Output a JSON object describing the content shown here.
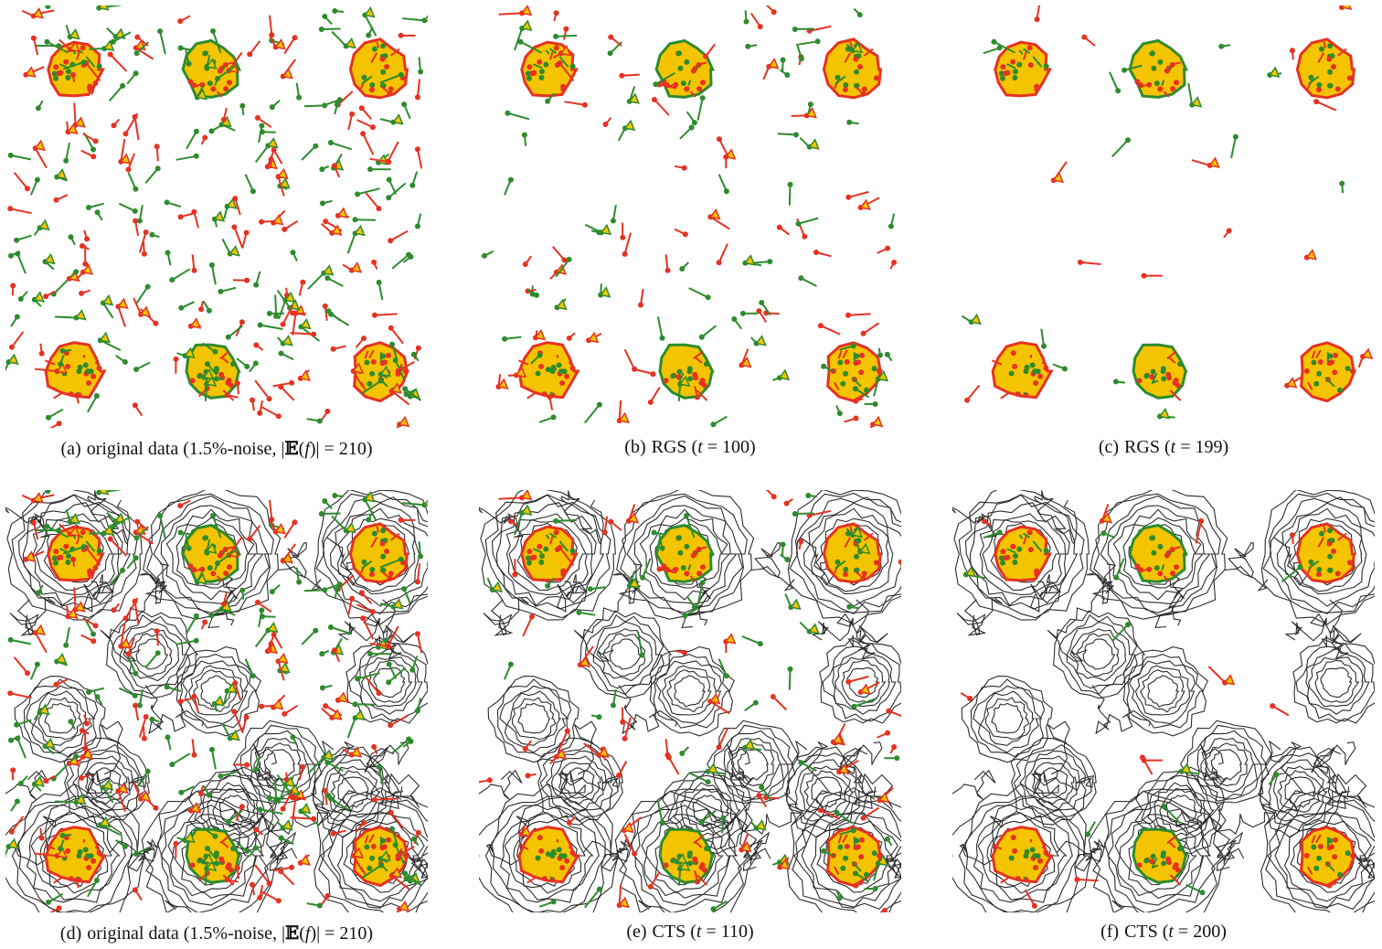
{
  "colors": {
    "min": "#e53222",
    "saddle": "#2e8b2e",
    "cell": "#f5c400",
    "contour": "#2b2b2b",
    "background": "#ffffff"
  },
  "panels": [
    {
      "tag": "(a)",
      "text": "original data (1.5%-noise, |",
      "tail": "(f)| = 210)",
      "noise": 1.0,
      "contours": false
    },
    {
      "tag": "(b)",
      "text": "RGS (",
      "t": "t",
      "tail": " = 100)",
      "noise": 0.55,
      "contours": false
    },
    {
      "tag": "(c)",
      "text": "RGS (",
      "t": "t",
      "tail": " = 199)",
      "noise": 0.12,
      "contours": false
    },
    {
      "tag": "(d)",
      "text": "original data (1.5%-noise, |",
      "tail": "(f)| = 210)",
      "noise": 1.0,
      "contours": true
    },
    {
      "tag": "(e)",
      "text": "CTS (",
      "t": "t",
      "tail": " = 110)",
      "noise": 0.5,
      "contours": true
    },
    {
      "tag": "(f)",
      "text": "CTS (",
      "t": "t",
      "tail": " = 200)",
      "noise": 0.1,
      "contours": true
    }
  ],
  "captions": {
    "a": {
      "tag": "(a)",
      "pre": "original data (1.5%-noise, |",
      "bb": "𝔼",
      "post": "(",
      "f": "f",
      "end": ")| = 210)"
    },
    "b": {
      "tag": "(b)",
      "pre": "RGS (",
      "t": "t",
      "end": " = 100)"
    },
    "c": {
      "tag": "(c)",
      "pre": "RGS (",
      "t": "t",
      "end": " = 199)"
    },
    "d": {
      "tag": "(d)",
      "pre": "original data (1.5%-noise, |",
      "bb": "𝔼",
      "post": "(",
      "f": "f",
      "end": ")| = 210)"
    },
    "e": {
      "tag": "(e)",
      "pre": "CTS (",
      "t": "t",
      "end": " = 110)"
    },
    "f": {
      "tag": "(f)",
      "pre": "CTS (",
      "t": "t",
      "end": " = 200)"
    }
  }
}
